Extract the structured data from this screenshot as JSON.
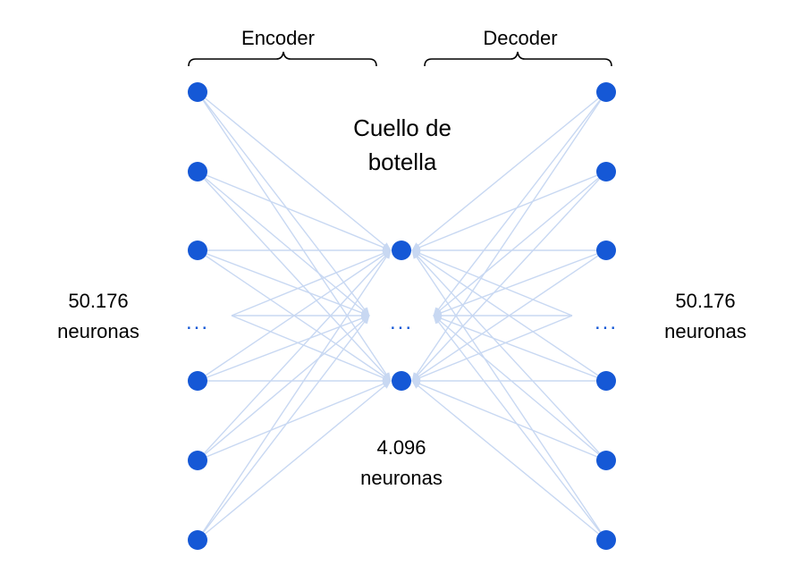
{
  "encoder_label": "Encoder",
  "decoder_label": "Decoder",
  "bottleneck_title_line1": "Cuello de",
  "bottleneck_title_line2": "botella",
  "input_count_line1": "50.176",
  "input_count_line2": "neuronas",
  "output_count_line1": "50.176",
  "output_count_line2": "neuronas",
  "bottleneck_count_line1": "4.096",
  "bottleneck_count_line2": "neuronas",
  "ellipsis": "...",
  "colors": {
    "node": "#1558d6",
    "edge": "#c8d8f2",
    "text": "#000000"
  }
}
